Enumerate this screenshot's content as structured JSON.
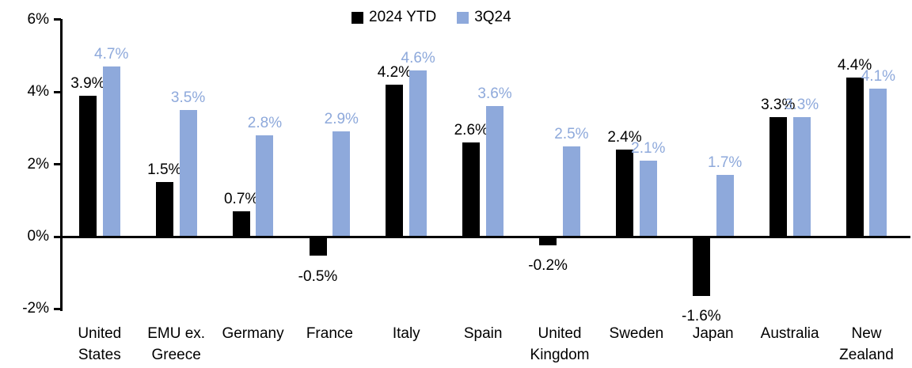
{
  "chart_data": {
    "type": "bar",
    "title": "",
    "categories": [
      "United States",
      "EMU ex. Greece",
      "Germany",
      "France",
      "Italy",
      "Spain",
      "United Kingdom",
      "Sweden",
      "Japan",
      "Australia",
      "New Zealand"
    ],
    "series": [
      {
        "name": "2024 YTD",
        "color": "#000000",
        "label_color": "#000000",
        "values": [
          3.9,
          1.5,
          0.7,
          -0.5,
          4.2,
          2.6,
          -0.2,
          2.4,
          -1.6,
          3.3,
          4.4
        ]
      },
      {
        "name": "3Q24",
        "color": "#8EA9DB",
        "label_color": "#8EA9DB",
        "values": [
          4.7,
          3.5,
          2.8,
          2.9,
          4.6,
          3.6,
          2.5,
          2.1,
          1.7,
          3.3,
          4.1
        ]
      }
    ],
    "value_label_format": "percent_one_decimal",
    "xlabel": "",
    "ylabel": "",
    "ylim": [
      -2,
      6
    ],
    "yticks": [
      "6%",
      "4%",
      "2%",
      "0%",
      "-2%"
    ],
    "ytick_values": [
      6,
      4,
      2,
      0,
      -2
    ],
    "grid": false,
    "legend_position": "top-center",
    "axis_color": "#000000"
  }
}
